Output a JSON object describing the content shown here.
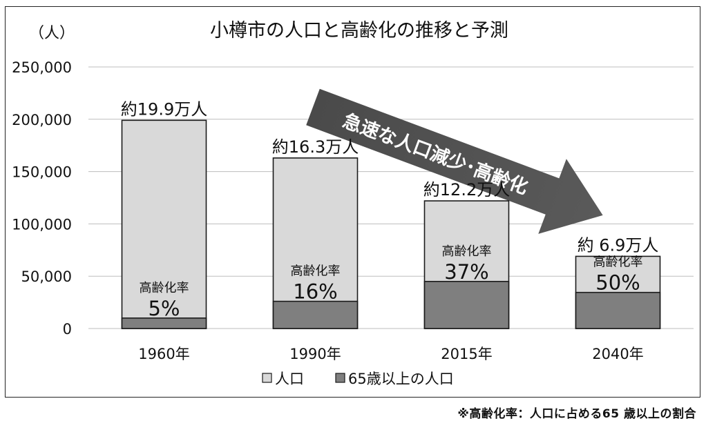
{
  "chart_data": {
    "type": "bar",
    "title": "小樽市の人口と高齢化の推移と予測",
    "unit_label": "（人）",
    "categories": [
      "1960年",
      "1990年",
      "2015年",
      "2040年"
    ],
    "series": [
      {
        "name": "人口",
        "values": [
          199000,
          163000,
          122000,
          69000
        ],
        "color": "#d9d9d9"
      },
      {
        "name": "65歳以上の人口",
        "values": [
          10000,
          26000,
          45000,
          34500
        ],
        "color": "#7f7f7f"
      }
    ],
    "total_labels": [
      "約19.9万人",
      "約16.3万人",
      "約12.2万人",
      "約 6.9万人"
    ],
    "rate_title": "高齢化率",
    "rate_values": [
      "5%",
      "16%",
      "37%",
      "50%"
    ],
    "ylim": [
      0,
      250000
    ],
    "yticks": [
      0,
      50000,
      100000,
      150000,
      200000,
      250000
    ],
    "ytick_labels": [
      "0",
      "50,000",
      "100,000",
      "150,000",
      "200,000",
      "250,000"
    ],
    "grid": true,
    "legend_position": "bottom",
    "arrow_text": "急速な人口減少･高齢化"
  },
  "footnote": "※高齢化率：人口に占める65 歳以上の割合"
}
